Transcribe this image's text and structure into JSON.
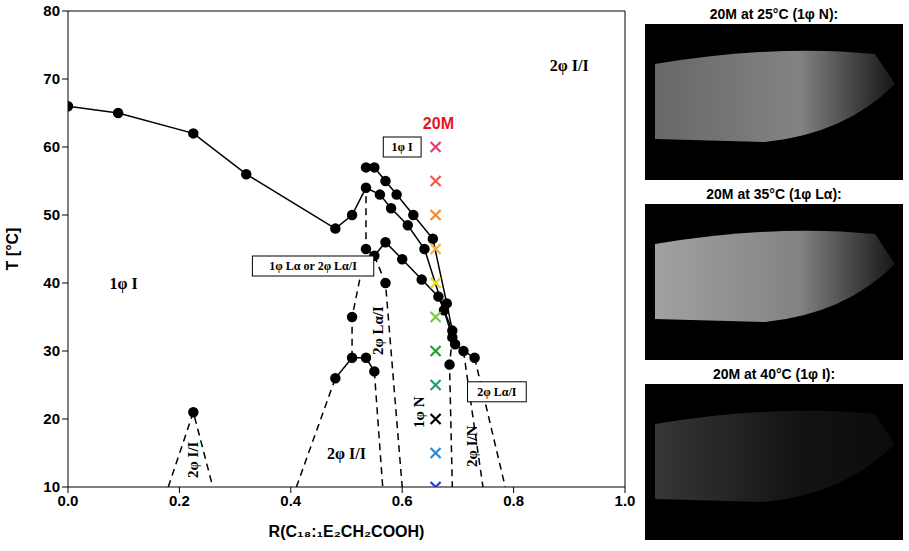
{
  "chart_data": {
    "type": "line",
    "x_label": "R(C₁₈:₁E₂CH₂COOH)",
    "y_label": "T [°C]",
    "xlim": [
      0,
      1
    ],
    "xticks": [
      {
        "value": 0,
        "label": "0.0"
      },
      {
        "value": 0.2,
        "label": "0.2"
      },
      {
        "value": 0.4,
        "label": "0.4"
      },
      {
        "value": 0.6,
        "label": "0.6"
      },
      {
        "value": 0.8,
        "label": "0.8"
      },
      {
        "value": 1,
        "label": "1.0"
      }
    ],
    "ylim": [
      10,
      80
    ],
    "yticks": [
      10,
      20,
      30,
      40,
      50,
      60,
      70,
      80
    ],
    "series": [
      {
        "type": "line",
        "color": "#000000",
        "marker": "circle",
        "line_style": "solid",
        "x": [
          0,
          0.09,
          0.225,
          0.32,
          0.48,
          0.51,
          0.535,
          0.56,
          0.58,
          0.61,
          0.64,
          0.675,
          0.69
        ],
        "values": [
          66,
          65,
          62,
          56,
          48,
          50,
          54,
          53,
          51,
          48.5,
          45,
          36,
          32
        ]
      },
      {
        "type": "line",
        "color": "#000000",
        "marker": "circle",
        "line_style": "solid",
        "x": [
          0.535,
          0.55,
          0.57,
          0.59,
          0.62,
          0.655,
          0.68,
          0.695,
          0.71,
          0.73
        ],
        "values": [
          57,
          57,
          55,
          53,
          50,
          46.5,
          37,
          31,
          30,
          29
        ]
      },
      {
        "type": "line",
        "color": "#000000",
        "marker": "circle",
        "line_style": "solid",
        "x": [
          0.535,
          0.55,
          0.57,
          0.6,
          0.635,
          0.665,
          0.69
        ],
        "values": [
          45,
          44,
          46,
          43.5,
          40.5,
          38,
          33
        ]
      },
      {
        "type": "line",
        "color": "#000000",
        "marker": "circle",
        "line_style": "solid",
        "x": [
          0.48,
          0.51,
          0.535,
          0.55
        ],
        "values": [
          26,
          29,
          29,
          27
        ]
      },
      {
        "type": "line",
        "color": "#000000",
        "marker": "circle",
        "line_style": "none",
        "x": [
          0.225,
          0.51,
          0.57,
          0.685
        ],
        "values": [
          21,
          35,
          40,
          28
        ]
      },
      {
        "type": "line",
        "color": "#000000",
        "marker": "none",
        "line_style": "dashed",
        "x": [
          0.18,
          0.225,
          0.26
        ],
        "values": [
          10,
          21,
          10
        ]
      },
      {
        "type": "line",
        "color": "#000000",
        "marker": "none",
        "line_style": "dashed",
        "x": [
          0.41,
          0.48
        ],
        "values": [
          10,
          26
        ]
      },
      {
        "type": "line",
        "color": "#000000",
        "marker": "none",
        "line_style": "dashed",
        "x": [
          0.51,
          0.51,
          0.535,
          0.535
        ],
        "values": [
          29,
          35,
          45,
          54
        ]
      },
      {
        "type": "line",
        "color": "#000000",
        "marker": "none",
        "line_style": "dashed",
        "x": [
          0.55,
          0.565
        ],
        "values": [
          27,
          10
        ]
      },
      {
        "type": "line",
        "color": "#000000",
        "marker": "none",
        "line_style": "dashed",
        "x": [
          0.55,
          0.57,
          0.6
        ],
        "values": [
          44,
          40,
          10
        ]
      },
      {
        "type": "line",
        "color": "#000000",
        "marker": "none",
        "line_style": "dashed",
        "x": [
          0.69,
          0.685,
          0.69
        ],
        "values": [
          32,
          28,
          10
        ]
      },
      {
        "type": "line",
        "color": "#000000",
        "marker": "none",
        "line_style": "dashed",
        "x": [
          0.71,
          0.745
        ],
        "values": [
          30,
          10
        ]
      },
      {
        "type": "line",
        "color": "#000000",
        "marker": "none",
        "line_style": "dashed",
        "x": [
          0.73,
          0.785
        ],
        "values": [
          29,
          10
        ]
      },
      {
        "type": "scatter",
        "marker": "x",
        "x": [
          0.66,
          0.66,
          0.66,
          0.66,
          0.66,
          0.66,
          0.66,
          0.66,
          0.66,
          0.66,
          0.66
        ],
        "values": [
          10,
          15,
          20,
          25,
          30,
          35,
          40,
          45,
          50,
          55,
          60
        ],
        "colors": [
          "#1f3fd6",
          "#2a8ad6",
          "#000000",
          "#1f9e72",
          "#21a030",
          "#7ac943",
          "#e8d62a",
          "#f2b03a",
          "#f28c28",
          "#ef5a4a",
          "#e0407a"
        ]
      }
    ],
    "annotations": [
      {
        "text": "1φ I",
        "x": 0.1,
        "y": 40,
        "color": "#000000"
      },
      {
        "text": "2φ I/I",
        "x": 0.9,
        "y": 72,
        "color": "#000000"
      },
      {
        "text": "2φ I/I",
        "x": 0.5,
        "y": 15,
        "color": "#000000"
      },
      {
        "text": "20M",
        "x": 0.665,
        "y": 63.5,
        "color": "#e8141e"
      }
    ],
    "vertical_annotations": [
      {
        "text": "2φ I/I",
        "x": 0.225,
        "y": 14
      },
      {
        "text": "2φ Lα/I",
        "x": 0.557,
        "y": 33
      },
      {
        "text": "1φ N",
        "x": 0.63,
        "y": 21
      },
      {
        "text": "2φ I/N",
        "x": 0.725,
        "y": 16
      }
    ],
    "boxed_annotations": [
      {
        "text": "1φ I",
        "x": 0.6,
        "y": 60
      },
      {
        "text": "1φ Lα or 2φ Lα/I",
        "x": 0.44,
        "y": 42.5
      },
      {
        "text": "2φ Lα/I",
        "x": 0.77,
        "y": 24
      }
    ],
    "photos": [
      {
        "title": "20M at 25°C (1φ N):"
      },
      {
        "title": "20M at 35°C (1φ Lα):"
      },
      {
        "title": "20M at 40°C (1φ I):"
      }
    ]
  }
}
